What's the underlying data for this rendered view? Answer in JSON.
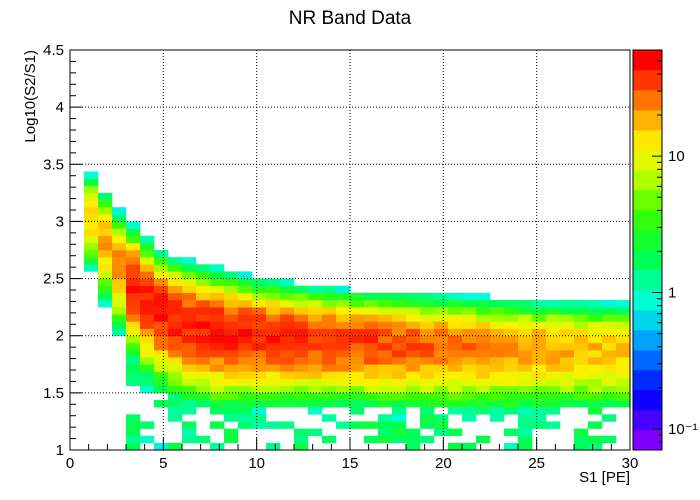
{
  "chart_data": {
    "type": "heatmap",
    "title": "NR Band Data",
    "xlabel": "S1 [PE]",
    "ylabel": "Log10(S2/S1)",
    "xlim": [
      0,
      30
    ],
    "ylim": [
      1,
      4.5
    ],
    "x_bins": 40,
    "y_bins": 56,
    "x_ticks": [
      "0",
      "5",
      "10",
      "15",
      "20",
      "25",
      "30"
    ],
    "y_ticks": [
      "1",
      "1.5",
      "2",
      "2.5",
      "3",
      "3.5",
      "4",
      "4.5"
    ],
    "grid": true,
    "colorbar": {
      "scale": "log",
      "range": [
        0.07,
        60
      ],
      "tick_labels": [
        "10",
        "1",
        "10⁻¹"
      ]
    },
    "band": [
      {
        "x": 1.0,
        "y": 3.1,
        "width": 0.1
      },
      {
        "x": 2.0,
        "y": 2.82,
        "width": 0.12
      },
      {
        "x": 3.0,
        "y": 2.55,
        "width": 0.13
      },
      {
        "x": 4.0,
        "y": 2.35,
        "width": 0.14
      },
      {
        "x": 5.0,
        "y": 2.22,
        "width": 0.14
      },
      {
        "x": 6.5,
        "y": 2.12,
        "width": 0.14
      },
      {
        "x": 8.0,
        "y": 2.07,
        "width": 0.14
      },
      {
        "x": 10.0,
        "y": 2.03,
        "width": 0.13
      },
      {
        "x": 13.0,
        "y": 1.99,
        "width": 0.12
      },
      {
        "x": 16.0,
        "y": 1.96,
        "width": 0.12
      },
      {
        "x": 20.0,
        "y": 1.93,
        "width": 0.12
      },
      {
        "x": 25.0,
        "y": 1.9,
        "width": 0.12
      },
      {
        "x": 30.0,
        "y": 1.88,
        "width": 0.12
      }
    ]
  }
}
